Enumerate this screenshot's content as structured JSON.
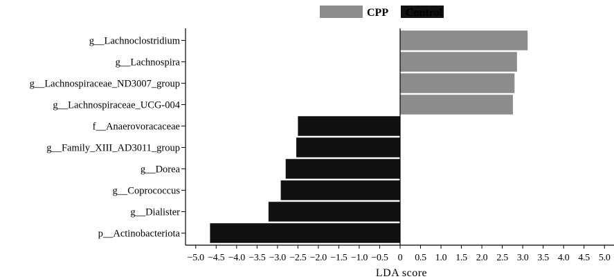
{
  "chart_data": {
    "type": "bar",
    "orientation": "horizontal",
    "xlabel": "LDA score",
    "xlim": [
      -5.25,
      5.25
    ],
    "ticks": [
      -5.0,
      -4.5,
      -4.0,
      -3.5,
      -3.0,
      -2.5,
      -2.0,
      -1.5,
      -1.0,
      -0.5,
      0,
      0.5,
      1.0,
      1.5,
      2.0,
      2.5,
      3.0,
      3.5,
      4.0,
      4.5,
      5.0
    ],
    "tick_labels": [
      "−5.0",
      "−4.5",
      "−4.0",
      "−3.5",
      "−3.0",
      "−2.5",
      "−2.0",
      "−1.5",
      "−1.0",
      "−0.5",
      "0",
      "0.5",
      "1.0",
      "1.5",
      "2.0",
      "2.5",
      "3.0",
      "3.5",
      "4.0",
      "4.5",
      "5.0"
    ],
    "legend": [
      {
        "name": "CPP",
        "color": "#8c8c8c"
      },
      {
        "name": "Control",
        "color": "#111111"
      }
    ],
    "legend_placement": "top-right",
    "grid": false,
    "categories": [
      {
        "label": "g__Lachnoclostridium",
        "value": 3.12,
        "group": "CPP"
      },
      {
        "label": "g__Lachnospira",
        "value": 2.86,
        "group": "CPP"
      },
      {
        "label": "g__Lachnospiraceae_ND3007_group",
        "value": 2.8,
        "group": "CPP"
      },
      {
        "label": "g__Lachnospiraceae_UCG-004",
        "value": 2.76,
        "group": "CPP"
      },
      {
        "label": "f__Anaerovoracaceae",
        "value": -2.5,
        "group": "Control"
      },
      {
        "label": "g__Family_XIII_AD3011_group",
        "value": -2.54,
        "group": "Control"
      },
      {
        "label": "g__Dorea",
        "value": -2.8,
        "group": "Control"
      },
      {
        "label": "g__Coprococcus",
        "value": -2.92,
        "group": "Control"
      },
      {
        "label": "g__Dialister",
        "value": -3.22,
        "group": "Control"
      },
      {
        "label": "p__Actinobacteriota",
        "value": -4.65,
        "group": "Control"
      }
    ]
  }
}
